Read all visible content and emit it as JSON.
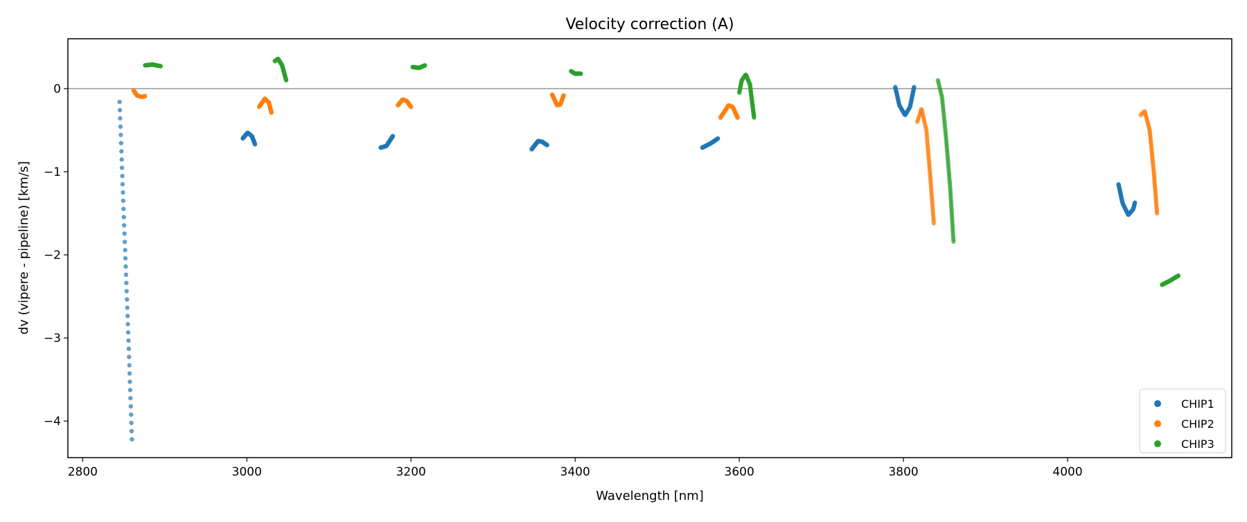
{
  "chart_data": {
    "type": "scatter",
    "title": "Velocity correction (A)",
    "xlabel": "Wavelength [nm]",
    "ylabel": "dv (vipere - pipeline) [km/s]",
    "xlim": [
      2782,
      4200
    ],
    "ylim": [
      -4.44,
      0.6
    ],
    "xticks": [
      {
        "v": 2800,
        "label": "2800"
      },
      {
        "v": 3000,
        "label": "3000"
      },
      {
        "v": 3200,
        "label": "3200"
      },
      {
        "v": 3400,
        "label": "3400"
      },
      {
        "v": 3600,
        "label": "3600"
      },
      {
        "v": 3800,
        "label": "3800"
      },
      {
        "v": 4000,
        "label": "4000"
      }
    ],
    "yticks": [
      {
        "v": -4,
        "label": "−4"
      },
      {
        "v": -3,
        "label": "−3"
      },
      {
        "v": -2,
        "label": "−2"
      },
      {
        "v": -1,
        "label": "−1"
      },
      {
        "v": 0,
        "label": "0"
      }
    ],
    "reference_line_y": 0,
    "grid": false,
    "legend_position": "lower-right",
    "series": [
      {
        "name": "CHIP1",
        "color": "#1f77b4",
        "segments": [
          {
            "n": 42,
            "pts": [
              [
                2845,
                -0.16
              ],
              [
                2850,
                -1.5
              ],
              [
                2855,
                -2.8
              ],
              [
                2860,
                -4.22
              ]
            ]
          },
          {
            "n": 60,
            "pts": [
              [
                2995,
                -0.6
              ],
              [
                3001,
                -0.53
              ],
              [
                3006,
                -0.57
              ],
              [
                3010,
                -0.67
              ]
            ]
          },
          {
            "n": 60,
            "pts": [
              [
                3163,
                -0.71
              ],
              [
                3170,
                -0.69
              ],
              [
                3178,
                -0.57
              ]
            ]
          },
          {
            "n": 60,
            "pts": [
              [
                3347,
                -0.73
              ],
              [
                3355,
                -0.63
              ],
              [
                3360,
                -0.64
              ],
              [
                3366,
                -0.68
              ]
            ]
          },
          {
            "n": 60,
            "pts": [
              [
                3555,
                -0.71
              ],
              [
                3565,
                -0.66
              ],
              [
                3574,
                -0.6
              ]
            ]
          },
          {
            "n": 70,
            "pts": [
              [
                3790,
                0.02
              ],
              [
                3795,
                -0.2
              ],
              [
                3802,
                -0.32
              ],
              [
                3808,
                -0.22
              ],
              [
                3813,
                0.02
              ]
            ]
          },
          {
            "n": 70,
            "pts": [
              [
                4062,
                -1.15
              ],
              [
                4067,
                -1.38
              ],
              [
                4074,
                -1.52
              ],
              [
                4080,
                -1.45
              ],
              [
                4082,
                -1.37
              ]
            ]
          }
        ]
      },
      {
        "name": "CHIP2",
        "color": "#ff7f0e",
        "segments": [
          {
            "n": 50,
            "pts": [
              [
                2862,
                -0.02
              ],
              [
                2866,
                -0.08
              ],
              [
                2872,
                -0.1
              ],
              [
                2876,
                -0.09
              ]
            ]
          },
          {
            "n": 60,
            "pts": [
              [
                3015,
                -0.22
              ],
              [
                3022,
                -0.12
              ],
              [
                3027,
                -0.17
              ],
              [
                3030,
                -0.29
              ]
            ]
          },
          {
            "n": 60,
            "pts": [
              [
                3184,
                -0.2
              ],
              [
                3190,
                -0.13
              ],
              [
                3195,
                -0.15
              ],
              [
                3200,
                -0.22
              ]
            ]
          },
          {
            "n": 60,
            "pts": [
              [
                3372,
                -0.07
              ],
              [
                3378,
                -0.2
              ],
              [
                3382,
                -0.19
              ],
              [
                3386,
                -0.08
              ]
            ]
          },
          {
            "n": 60,
            "pts": [
              [
                3577,
                -0.35
              ],
              [
                3587,
                -0.2
              ],
              [
                3592,
                -0.22
              ],
              [
                3598,
                -0.35
              ]
            ]
          },
          {
            "n": 60,
            "pts": [
              [
                3817,
                -0.4
              ],
              [
                3822,
                -0.24
              ],
              [
                3828,
                -0.5
              ],
              [
                3833,
                -1.1
              ],
              [
                3837,
                -1.62
              ]
            ]
          },
          {
            "n": 60,
            "pts": [
              [
                4089,
                -0.32
              ],
              [
                4094,
                -0.27
              ],
              [
                4100,
                -0.5
              ],
              [
                4105,
                -1.0
              ],
              [
                4109,
                -1.5
              ]
            ]
          }
        ]
      },
      {
        "name": "CHIP3",
        "color": "#2ca02c",
        "segments": [
          {
            "n": 50,
            "pts": [
              [
                2876,
                0.28
              ],
              [
                2885,
                0.29
              ],
              [
                2895,
                0.27
              ]
            ]
          },
          {
            "n": 60,
            "pts": [
              [
                3034,
                0.33
              ],
              [
                3038,
                0.36
              ],
              [
                3043,
                0.28
              ],
              [
                3048,
                0.1
              ]
            ]
          },
          {
            "n": 50,
            "pts": [
              [
                3202,
                0.26
              ],
              [
                3210,
                0.25
              ],
              [
                3217,
                0.28
              ]
            ]
          },
          {
            "n": 50,
            "pts": [
              [
                3395,
                0.21
              ],
              [
                3400,
                0.18
              ],
              [
                3407,
                0.18
              ]
            ]
          },
          {
            "n": 70,
            "pts": [
              [
                3600,
                -0.05
              ],
              [
                3603,
                0.1
              ],
              [
                3608,
                0.17
              ],
              [
                3613,
                0.05
              ],
              [
                3618,
                -0.35
              ]
            ]
          },
          {
            "n": 70,
            "pts": [
              [
                3842,
                0.1
              ],
              [
                3847,
                -0.1
              ],
              [
                3852,
                -0.6
              ],
              [
                3857,
                -1.2
              ],
              [
                3861,
                -1.84
              ]
            ]
          },
          {
            "n": 60,
            "pts": [
              [
                4115,
                -2.36
              ],
              [
                4125,
                -2.31
              ],
              [
                4135,
                -2.25
              ]
            ]
          }
        ]
      }
    ]
  }
}
